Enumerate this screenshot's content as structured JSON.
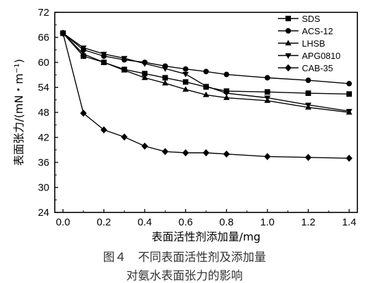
{
  "chart_data": {
    "type": "line",
    "xlabel": "表面活性剂添加量/mg",
    "ylabel": "表面张力/(mN・m⁻¹)",
    "xlim": [
      0.0,
      1.4
    ],
    "ylim": [
      24,
      72
    ],
    "xticks": [
      "0.0",
      "0.2",
      "0.4",
      "0.6",
      "0.8",
      "1.0",
      "1.2",
      "1.4"
    ],
    "yticks": [
      "24",
      "30",
      "36",
      "42",
      "48",
      "54",
      "60",
      "66",
      "72"
    ],
    "grid": false,
    "legend_position": "top-right",
    "series": [
      {
        "name": "SDS",
        "marker": "square",
        "x": [
          0.0,
          0.1,
          0.2,
          0.3,
          0.4,
          0.5,
          0.6,
          0.7,
          0.8,
          1.0,
          1.2,
          1.4
        ],
        "y": [
          67,
          61.5,
          60.0,
          58.3,
          57.3,
          56.3,
          55.3,
          54.1,
          53.1,
          52.9,
          52.6,
          52.4
        ]
      },
      {
        "name": "ACS-12",
        "marker": "circle",
        "x": [
          0.0,
          0.1,
          0.2,
          0.3,
          0.4,
          0.5,
          0.6,
          0.7,
          0.8,
          1.0,
          1.2,
          1.4
        ],
        "y": [
          67,
          63.0,
          61.5,
          60.6,
          60.0,
          59.1,
          58.4,
          57.8,
          57.1,
          56.3,
          55.7,
          54.9
        ]
      },
      {
        "name": "LHSB",
        "marker": "triangle-up",
        "x": [
          0.0,
          0.1,
          0.2,
          0.3,
          0.4,
          0.5,
          0.6,
          0.7,
          0.8,
          1.0,
          1.2,
          1.4
        ],
        "y": [
          67,
          62.0,
          60.0,
          58.1,
          56.3,
          55.0,
          53.5,
          52.2,
          51.5,
          50.8,
          49.2,
          48.0
        ]
      },
      {
        "name": "APG0810",
        "marker": "triangle-down",
        "x": [
          0.0,
          0.1,
          0.2,
          0.3,
          0.4,
          0.5,
          0.6,
          0.7,
          0.8,
          1.0,
          1.2,
          1.4
        ],
        "y": [
          67,
          63.5,
          62.0,
          61.0,
          59.7,
          58.5,
          57.2,
          54.3,
          52.6,
          51.5,
          49.8,
          48.3
        ]
      },
      {
        "name": "CAB-35",
        "marker": "diamond",
        "x": [
          0.0,
          0.1,
          0.2,
          0.3,
          0.4,
          0.5,
          0.6,
          0.7,
          0.8,
          1.0,
          1.2,
          1.4
        ],
        "y": [
          67,
          47.8,
          43.8,
          42.1,
          39.9,
          38.6,
          38.3,
          38.3,
          38.0,
          37.4,
          37.2,
          37.0
        ]
      }
    ]
  },
  "caption": {
    "line1": "图４　不同表面活性剂及添加量",
    "line2": "对氨水表面张力的影响"
  }
}
